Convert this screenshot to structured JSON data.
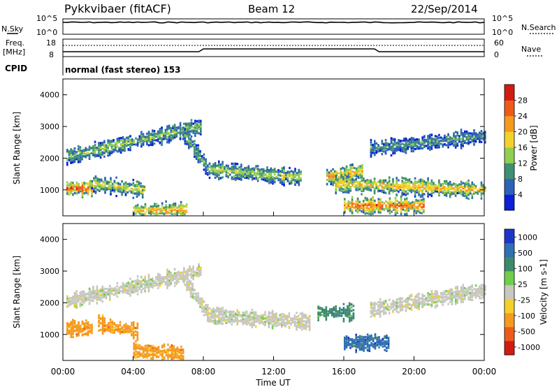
{
  "header": {
    "station": "Pykkvibaer (fitACF)",
    "beam": "Beam 12",
    "date": "22/Sep/2014"
  },
  "meta_panels": {
    "nsky_label": "N.Sky",
    "nsky_top_tick": "10^5",
    "nsky_bottom_tick": "10^0",
    "nsearch_label": "N.Search",
    "nsearch_top_tick": "10^5",
    "nsearch_bottom_tick": "10^0",
    "freq_label_1": "Freq.",
    "freq_label_2": "[MHz]",
    "freq_top_tick": "18",
    "freq_bottom_tick": "8",
    "nave_label": "Nave",
    "nave_top_tick": "60",
    "nave_bottom_tick": "0",
    "cpid_label": "CPID",
    "cpid_text": "normal (fast stereo) 153"
  },
  "chart_data": [
    {
      "type": "heatmap",
      "name": "power",
      "ylabel": "Slant Range [km]",
      "ylim": [
        180,
        4500
      ],
      "yticks": [
        "1000",
        "2000",
        "3000",
        "4000"
      ],
      "colorbar_label": "Power [dB]",
      "colorbar_ticks": [
        "4",
        "8",
        "12",
        "16",
        "20",
        "24",
        "28"
      ],
      "colors": [
        "#0b1fd8",
        "#2d62b8",
        "#3f8f73",
        "#8fcf52",
        "#f5d22a",
        "#f59a1d",
        "#ef5a1b",
        "#d21b14"
      ],
      "echo_bands": [
        {
          "t0": 0.2,
          "t1": 7.8,
          "r_start": 2050,
          "r_end": 3000,
          "intensity": 0.45
        },
        {
          "t0": 0.2,
          "t1": 1.6,
          "r_start": 1050,
          "r_end": 1050,
          "intensity": 0.9
        },
        {
          "t0": 1.5,
          "t1": 4.6,
          "r_start": 1200,
          "r_end": 1000,
          "intensity": 0.55
        },
        {
          "t0": 6.8,
          "t1": 8.2,
          "r_start": 2800,
          "r_end": 1700,
          "intensity": 0.4
        },
        {
          "t0": 8.2,
          "t1": 13.5,
          "r_start": 1650,
          "r_end": 1400,
          "intensity": 0.5
        },
        {
          "t0": 4.0,
          "t1": 7.0,
          "r_start": 350,
          "r_end": 350,
          "intensity": 0.7
        },
        {
          "t0": 15.0,
          "t1": 17.0,
          "r_start": 1400,
          "r_end": 1600,
          "intensity": 0.7
        },
        {
          "t0": 15.5,
          "t1": 24.0,
          "r_start": 1200,
          "r_end": 1000,
          "intensity": 0.65
        },
        {
          "t0": 16.0,
          "t1": 20.5,
          "r_start": 500,
          "r_end": 500,
          "intensity": 0.85
        },
        {
          "t0": 17.5,
          "t1": 24.0,
          "r_start": 2300,
          "r_end": 2700,
          "intensity": 0.35
        }
      ]
    },
    {
      "type": "heatmap",
      "name": "velocity",
      "ylabel": "Slant Range [km]",
      "ylim": [
        180,
        4500
      ],
      "yticks": [
        "1000",
        "2000",
        "3000",
        "4000"
      ],
      "colorbar_label": "Velocity [m s-1]",
      "colorbar_ticks": [
        "1000",
        "500",
        "100",
        "25",
        "-25",
        "-100",
        "-500",
        "-1000"
      ],
      "colors": [
        "#1e36c8",
        "#2f6fb2",
        "#3d8a6a",
        "#6fcf4a",
        "#c8c8c0",
        "#f5cf2a",
        "#f59a1d",
        "#ef5a1b",
        "#d21b14"
      ],
      "echo_bands": [
        {
          "t0": 0.2,
          "t1": 7.8,
          "r_start": 2050,
          "r_end": 3000,
          "velocity_level": 4
        },
        {
          "t0": 0.2,
          "t1": 1.6,
          "r_start": 1200,
          "r_end": 1200,
          "velocity_level": 6
        },
        {
          "t0": 2.0,
          "t1": 4.2,
          "r_start": 1350,
          "r_end": 1100,
          "velocity_level": 6
        },
        {
          "t0": 4.0,
          "t1": 6.8,
          "r_start": 500,
          "r_end": 400,
          "velocity_level": 6
        },
        {
          "t0": 6.8,
          "t1": 8.2,
          "r_start": 2800,
          "r_end": 1700,
          "velocity_level": 4
        },
        {
          "t0": 8.2,
          "t1": 14.0,
          "r_start": 1600,
          "r_end": 1400,
          "velocity_level": 4
        },
        {
          "t0": 14.5,
          "t1": 16.5,
          "r_start": 1700,
          "r_end": 1700,
          "velocity_level": 2
        },
        {
          "t0": 16.0,
          "t1": 18.5,
          "r_start": 750,
          "r_end": 750,
          "velocity_level": 1
        },
        {
          "t0": 17.5,
          "t1": 24.0,
          "r_start": 1800,
          "r_end": 2400,
          "velocity_level": 4
        }
      ]
    }
  ],
  "x_axis": {
    "label": "Time UT",
    "ticks": [
      "00:00",
      "04:00",
      "08:00",
      "12:00",
      "16:00",
      "20:00",
      "00:00"
    ],
    "range_hours": [
      0,
      24
    ]
  }
}
